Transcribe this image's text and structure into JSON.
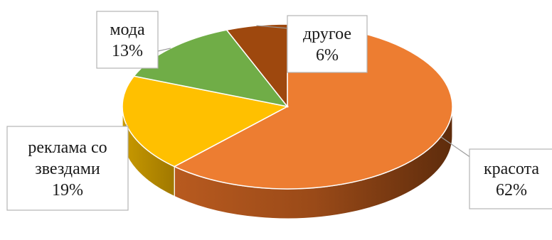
{
  "chart_data": {
    "type": "pie",
    "title": "",
    "slices": [
      {
        "label": "красота",
        "value": 62,
        "value_label": "62%",
        "color": "#ED7D31",
        "side_color": "#8A4416"
      },
      {
        "label": "реклама со звездами",
        "value": 19,
        "value_label": "19%",
        "color": "#FFC000",
        "side_color": "#B88A00"
      },
      {
        "label": "мода",
        "value": 13,
        "value_label": "13%",
        "color": "#70AD47",
        "side_color": "#46702A"
      },
      {
        "label": "другое",
        "value": 6,
        "value_label": "6%",
        "color": "#9E480E",
        "side_color": "#5C2A08"
      }
    ],
    "labels": [
      {
        "lines": [
          "красота",
          "62%"
        ]
      },
      {
        "lines": [
          "реклама со",
          "звездами",
          "19%"
        ]
      },
      {
        "lines": [
          "мода",
          "13%"
        ]
      },
      {
        "lines": [
          "другое",
          "6%"
        ]
      }
    ],
    "style": "3d"
  }
}
